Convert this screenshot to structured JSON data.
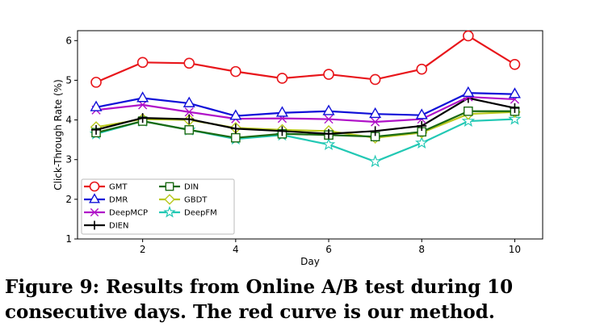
{
  "chart_data": {
    "type": "line",
    "xlabel": "Day",
    "ylabel": "Click-Through Rate (%)",
    "xlim": [
      0.6,
      10.6
    ],
    "ylim": [
      1,
      6.25
    ],
    "xticks": [
      2,
      4,
      6,
      8,
      10
    ],
    "yticks": [
      1,
      2,
      3,
      4,
      5,
      6
    ],
    "legend_position": "lower-left",
    "legend_columns": 2,
    "x": [
      1,
      2,
      3,
      4,
      5,
      6,
      7,
      8,
      9,
      10
    ],
    "series": [
      {
        "name": "GMT",
        "color": "#e8161b",
        "marker": "circle",
        "values": [
          4.95,
          5.45,
          5.43,
          5.22,
          5.05,
          5.15,
          5.02,
          5.28,
          6.12,
          5.4
        ]
      },
      {
        "name": "DMR",
        "color": "#1010d8",
        "marker": "triangle",
        "values": [
          4.32,
          4.55,
          4.42,
          4.1,
          4.18,
          4.22,
          4.15,
          4.12,
          4.68,
          4.65
        ]
      },
      {
        "name": "DeepMCP",
        "color": "#b012c8",
        "marker": "x",
        "values": [
          4.25,
          4.38,
          4.2,
          4.03,
          4.04,
          4.02,
          3.95,
          4.02,
          4.58,
          4.52
        ]
      },
      {
        "name": "DIEN",
        "color": "#000000",
        "marker": "plus",
        "values": [
          3.75,
          4.05,
          4.02,
          3.78,
          3.72,
          3.65,
          3.72,
          3.85,
          4.55,
          4.3
        ]
      },
      {
        "name": "DIN",
        "color": "#1a6a12",
        "marker": "square",
        "values": [
          3.68,
          3.97,
          3.75,
          3.55,
          3.65,
          3.62,
          3.58,
          3.7,
          4.22,
          4.22
        ]
      },
      {
        "name": "GBDT",
        "color": "#b8c81c",
        "marker": "diamond",
        "values": [
          3.82,
          4.02,
          4.0,
          3.8,
          3.75,
          3.72,
          3.55,
          3.68,
          4.15,
          4.2
        ]
      },
      {
        "name": "DeepFM",
        "color": "#22c8b4",
        "marker": "star",
        "values": [
          3.65,
          3.97,
          3.75,
          3.52,
          3.62,
          3.38,
          2.95,
          3.42,
          3.97,
          4.02
        ]
      }
    ]
  },
  "caption": "Figure 9: Results from Online A/B test during 10 consecutive days. The red curve is our method."
}
